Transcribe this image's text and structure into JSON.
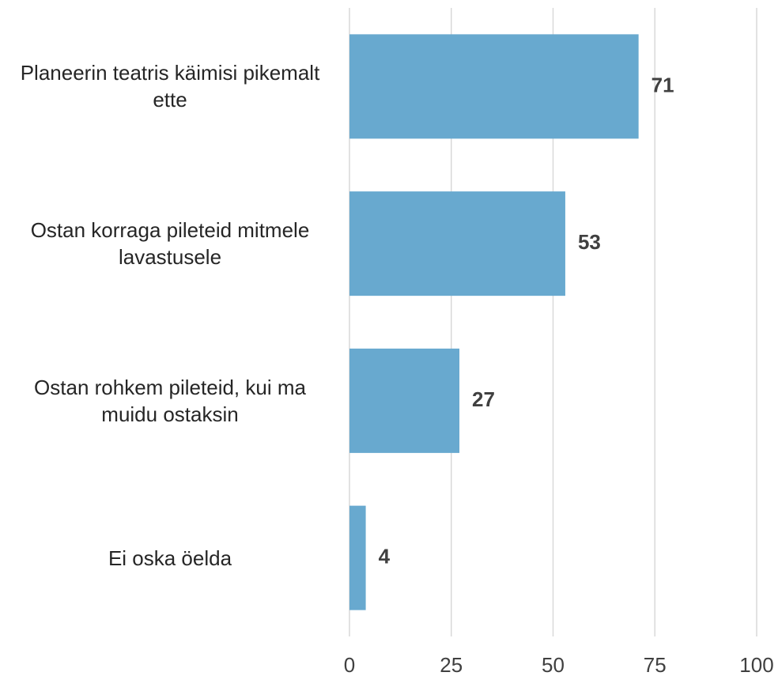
{
  "chart_data": {
    "type": "barh",
    "categories": [
      "Planeerin teatris käimisi pikemalt ette",
      "Ostan korraga pileteid mitmele lavastusele",
      "Ostan rohkem pileteid, kui ma muidu ostaksin",
      "Ei oska öelda"
    ],
    "values": [
      71,
      53,
      27,
      4
    ],
    "color": "#68a9cf",
    "xlim": [
      0,
      100
    ],
    "xticks": [
      0,
      25,
      50,
      75,
      100
    ],
    "grid": true
  }
}
